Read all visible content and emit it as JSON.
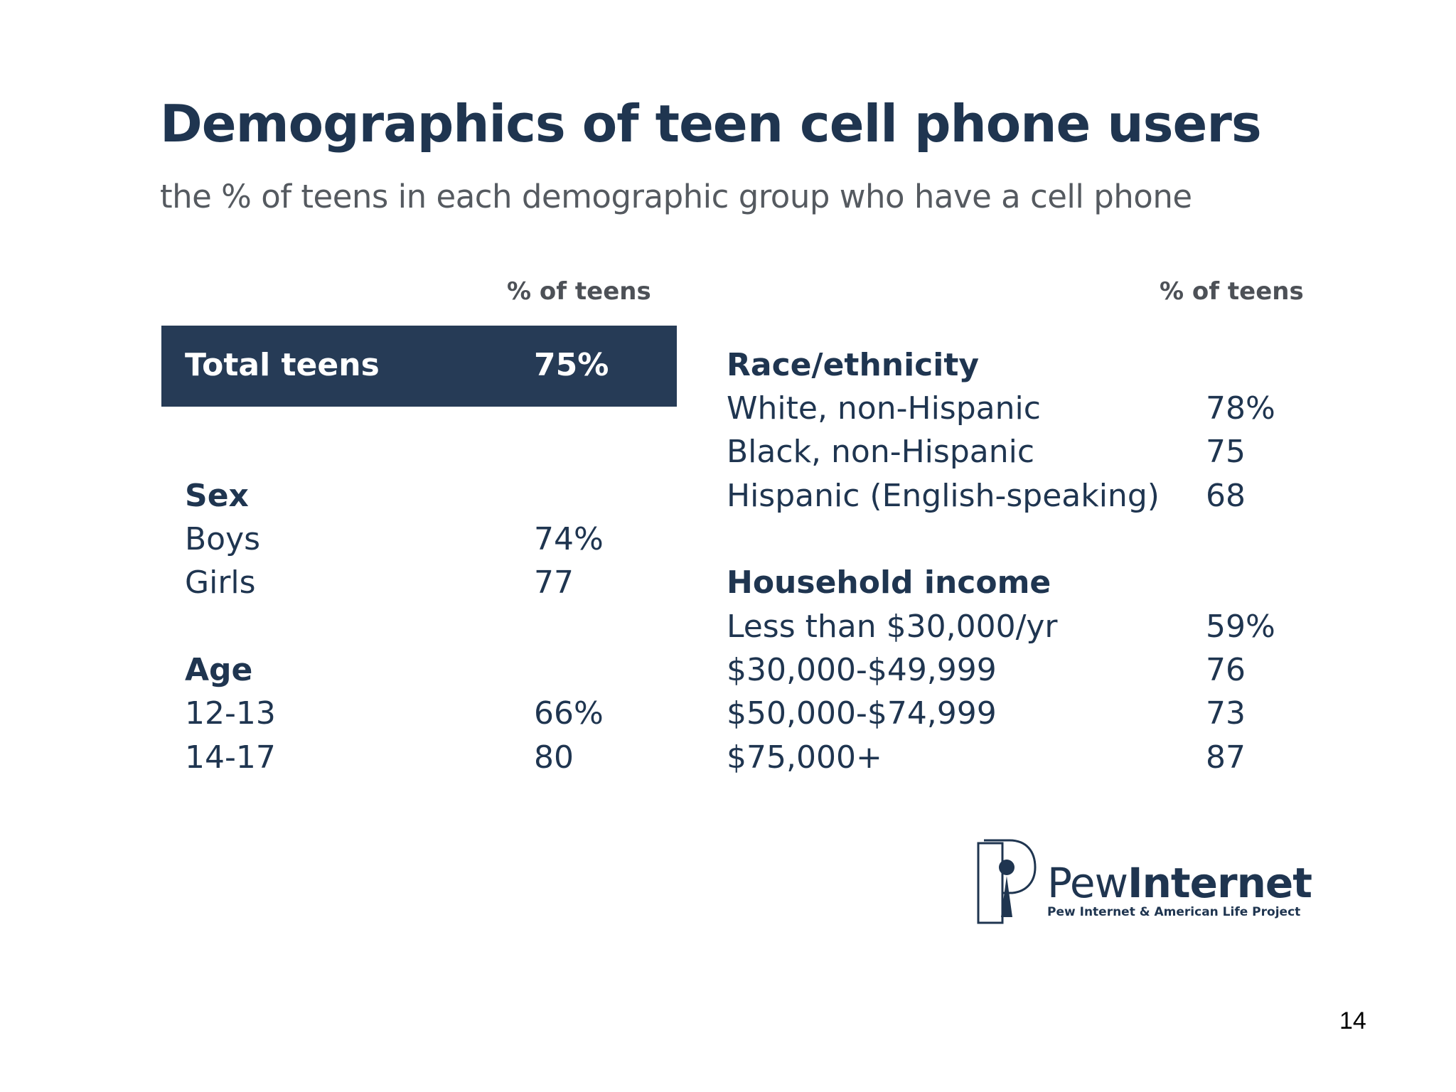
{
  "title": "Demographics of teen cell phone users",
  "subtitle": "the % of teens in each demographic group who have a cell phone",
  "left_column_header": "% of teens",
  "right_column_header": "% of teens",
  "total": {
    "label": "Total teens",
    "value": "75%"
  },
  "left_groups": [
    {
      "heading": "Sex",
      "rows": [
        {
          "label": "Boys",
          "value": "74%"
        },
        {
          "label": "Girls",
          "value": "77"
        }
      ]
    },
    {
      "heading": "Age",
      "rows": [
        {
          "label": "12-13",
          "value": "66%"
        },
        {
          "label": "14-17",
          "value": "80"
        }
      ]
    }
  ],
  "right_groups": [
    {
      "heading": "Race/ethnicity",
      "rows": [
        {
          "label": "White, non-Hispanic",
          "value": "78%"
        },
        {
          "label": "Black, non-Hispanic",
          "value": "75"
        },
        {
          "label": "Hispanic (English-speaking)",
          "value": "68"
        }
      ]
    },
    {
      "heading": "Household income",
      "rows": [
        {
          "label": "Less than $30,000/yr",
          "value": "59%"
        },
        {
          "label": "$30,000-$49,999",
          "value": "76"
        },
        {
          "label": "$50,000-$74,999",
          "value": "73"
        },
        {
          "label": "$75,000+",
          "value": "87"
        }
      ]
    }
  ],
  "logo": {
    "name_light": "Pew",
    "name_bold": "Internet",
    "tagline": "Pew Internet & American Life Project"
  },
  "page_number": "14",
  "colors": {
    "navy": "#263b56",
    "text": "#1f3550",
    "gray": "#555a60"
  }
}
